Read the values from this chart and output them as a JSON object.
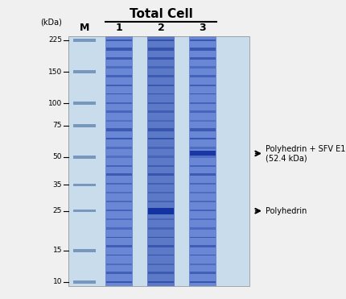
{
  "title": "Total Cell",
  "kda_label": "(kDa)",
  "lane_labels": [
    "M",
    "1",
    "2",
    "3"
  ],
  "mw_markers": [
    225,
    150,
    100,
    75,
    50,
    35,
    25,
    15,
    10
  ],
  "annotation1": "← Polyhedrin + SFV E1K\n(52.4 kDa)",
  "annotation2": "← Polyhedrin",
  "bg_color": "#dce8f0",
  "gel_bg": "#dce8f0",
  "marker_band_color": "#8ab4d4",
  "lane1_color": "#4060c8",
  "lane2_color": "#3050b8",
  "lane3_color": "#4060c8",
  "outer_bg": "#f0f0f0"
}
